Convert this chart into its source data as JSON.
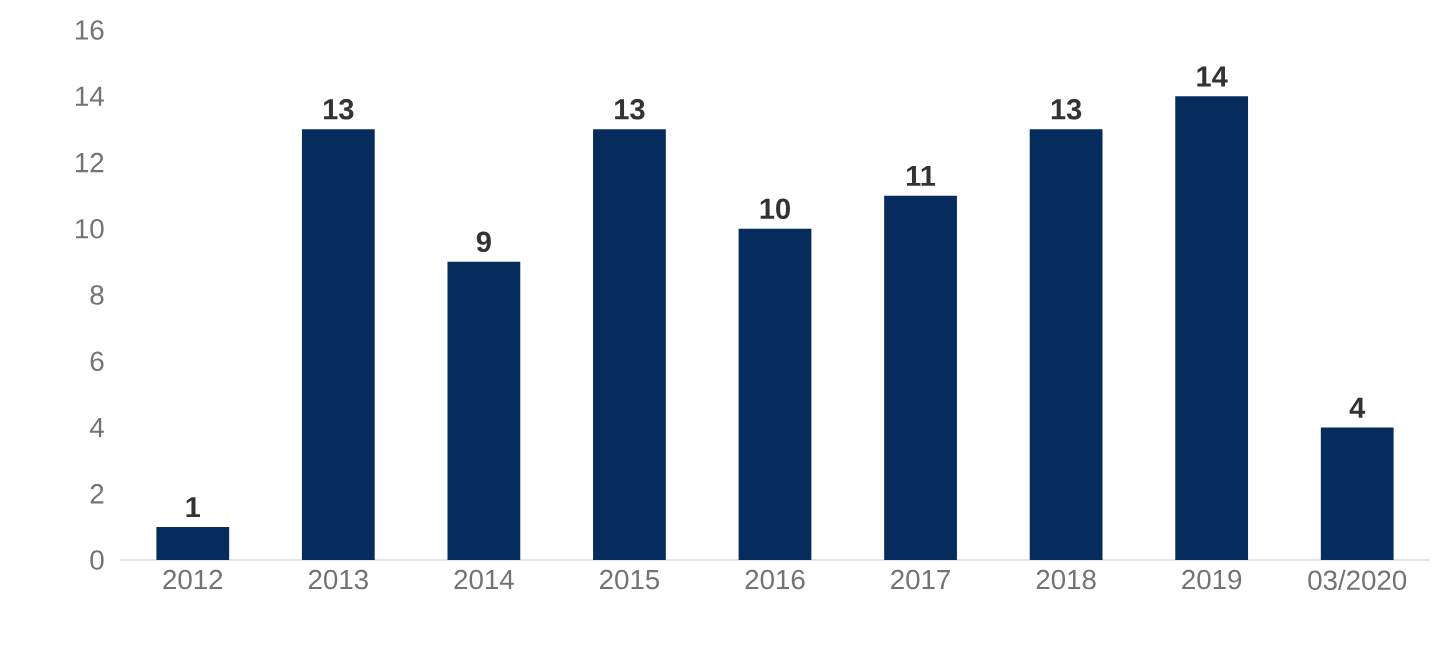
{
  "chart_data": {
    "type": "bar",
    "categories": [
      "2012",
      "2013",
      "2014",
      "2015",
      "2016",
      "2017",
      "2018",
      "2019",
      "03/2020"
    ],
    "values": [
      1,
      13,
      9,
      13,
      10,
      11,
      13,
      14,
      4
    ],
    "color": "#062c5e",
    "ylim": [
      0,
      16
    ],
    "yticks": [
      0,
      2,
      4,
      6,
      8,
      10,
      12,
      14,
      16
    ],
    "data_labels": true
  }
}
